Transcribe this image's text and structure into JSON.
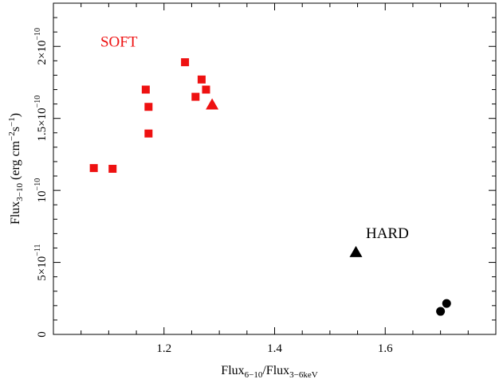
{
  "chart_data": {
    "type": "scatter",
    "xlabel": {
      "base": "Flux",
      "sub1": "6−10",
      "mid": "/Flux",
      "sub2": "3−6keV"
    },
    "ylabel": {
      "base": "Flux",
      "sub": "3−10",
      "unit_open": " (erg cm",
      "exp1": "−2",
      "mid": "s",
      "exp2": "−1",
      "unit_close": ")"
    },
    "xlim": [
      1.0,
      1.8
    ],
    "ylim": [
      0,
      2.3e-10
    ],
    "x_ticks": [
      {
        "value": 1.2,
        "label": "1.2"
      },
      {
        "value": 1.4,
        "label": "1.4"
      },
      {
        "value": 1.6,
        "label": "1.6"
      }
    ],
    "y_ticks": [
      {
        "value": 0,
        "mant": "0",
        "exp": ""
      },
      {
        "value": 5e-11,
        "mant": "5×10",
        "exp": "−11"
      },
      {
        "value": 1e-10,
        "mant": "10",
        "exp": "−10"
      },
      {
        "value": 1.5e-10,
        "mant": "1.5×10",
        "exp": "−10"
      },
      {
        "value": 2e-10,
        "mant": "2×10",
        "exp": "−10"
      }
    ],
    "grid": false,
    "series": [
      {
        "marker": "square",
        "color": "#ee1111",
        "points": [
          [
            1.073,
            1.155e-10
          ],
          [
            1.107,
            1.15e-10
          ],
          [
            1.167,
            1.7e-10
          ],
          [
            1.172,
            1.58e-10
          ],
          [
            1.172,
            1.395e-10
          ],
          [
            1.238,
            1.89e-10
          ],
          [
            1.257,
            1.65e-10
          ],
          [
            1.268,
            1.77e-10
          ],
          [
            1.276,
            1.7e-10
          ]
        ]
      },
      {
        "marker": "triangle",
        "color": "#ee1111",
        "points": [
          [
            1.287,
            1.595e-10
          ]
        ]
      },
      {
        "marker": "triangle",
        "color": "#000000",
        "points": [
          [
            1.547,
            5.7e-11
          ]
        ]
      },
      {
        "marker": "circle",
        "color": "#000000",
        "points": [
          [
            1.7,
            1.6e-11
          ],
          [
            1.711,
            2.15e-11
          ]
        ]
      }
    ],
    "annotations": [
      {
        "text": "SOFT",
        "x": 1.085,
        "y": 2e-10,
        "color": "#ee1111"
      },
      {
        "text": "HARD",
        "x": 1.565,
        "y": 6.7e-11,
        "color": "#000000"
      }
    ]
  }
}
